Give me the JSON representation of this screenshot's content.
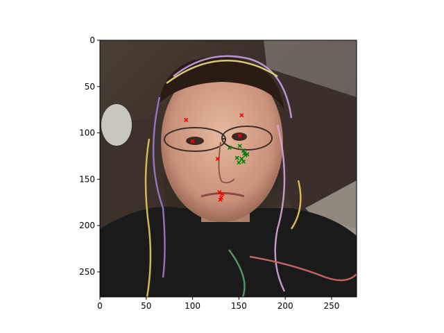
{
  "chart_data": {
    "type": "scatter",
    "background_image": "photo of a young man wearing glasses with colorful party streamers draped over his head, dark sweater, patterned rug and tiled floor behind him",
    "xlim": [
      0,
      277
    ],
    "ylim": [
      277,
      0
    ],
    "y_inverted": true,
    "xticks": [
      0,
      50,
      100,
      150,
      200,
      250
    ],
    "yticks": [
      0,
      50,
      100,
      150,
      200,
      250
    ],
    "grid": false,
    "marker": "x",
    "series": [
      {
        "color": "#ff0000",
        "points": [
          [
            93,
            86
          ],
          [
            153,
            81
          ],
          [
            100,
            109
          ],
          [
            151,
            103
          ],
          [
            127,
            128
          ],
          [
            129,
            164
          ],
          [
            132,
            166
          ],
          [
            131,
            170
          ],
          [
            130,
            172
          ]
        ]
      },
      {
        "color": "#008000",
        "points": [
          [
            140,
            116
          ],
          [
            151,
            114
          ],
          [
            155,
            119
          ],
          [
            156,
            122
          ],
          [
            157,
            124
          ],
          [
            159,
            123
          ],
          [
            148,
            127
          ],
          [
            153,
            128
          ],
          [
            150,
            132
          ],
          [
            155,
            131
          ]
        ]
      }
    ]
  }
}
